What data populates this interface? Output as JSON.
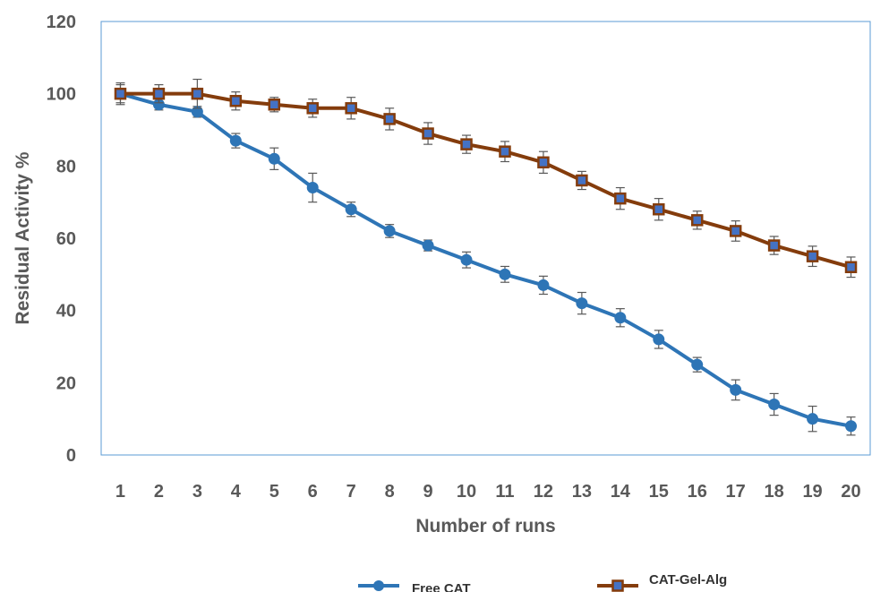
{
  "chart_data": {
    "type": "line",
    "title": "",
    "xlabel": "Number of runs",
    "ylabel": "Residual Activity %",
    "x": [
      1,
      2,
      3,
      4,
      5,
      6,
      7,
      8,
      9,
      10,
      11,
      12,
      13,
      14,
      15,
      16,
      17,
      18,
      19,
      20
    ],
    "x_tick_labels": [
      "1",
      "2",
      "3",
      "4",
      "5",
      "6",
      "7",
      "8",
      "9",
      "10",
      "11",
      "12",
      "13",
      "14",
      "15",
      "16",
      "17",
      "18",
      "19",
      "20"
    ],
    "ylim": [
      0,
      120
    ],
    "y_ticks": [
      0,
      20,
      40,
      60,
      80,
      100,
      120
    ],
    "y_tick_labels": [
      "0",
      "20",
      "40",
      "60",
      "80",
      "100",
      "120"
    ],
    "grid": false,
    "legend_position": "bottom",
    "series": [
      {
        "name": "Free CAT",
        "color": "#2E75B6",
        "marker": "circle",
        "values": [
          100,
          97,
          95,
          87,
          82,
          74,
          68,
          62,
          58,
          54,
          50,
          47,
          42,
          38,
          32,
          25,
          18,
          14,
          10,
          8
        ],
        "errors": [
          3,
          1.5,
          1.5,
          2,
          3,
          4,
          2,
          1.8,
          1.5,
          2.2,
          2.2,
          2.5,
          3,
          2.5,
          2.5,
          2,
          2.8,
          3,
          3.5,
          2.5
        ]
      },
      {
        "name": "CAT-Gel-Alg",
        "color": "#843C0C",
        "marker_fill": "#4472C4",
        "marker": "square",
        "values": [
          100,
          100,
          100,
          98,
          97,
          96,
          96,
          93,
          89,
          86,
          84,
          81,
          76,
          71,
          68,
          65,
          62,
          58,
          55,
          52
        ],
        "errors": [
          2.5,
          2.5,
          4,
          2.5,
          2,
          2.5,
          3,
          3,
          3,
          2.5,
          2.8,
          3,
          2.5,
          3,
          3,
          2.5,
          2.8,
          2.5,
          2.8,
          2.8
        ]
      }
    ]
  }
}
